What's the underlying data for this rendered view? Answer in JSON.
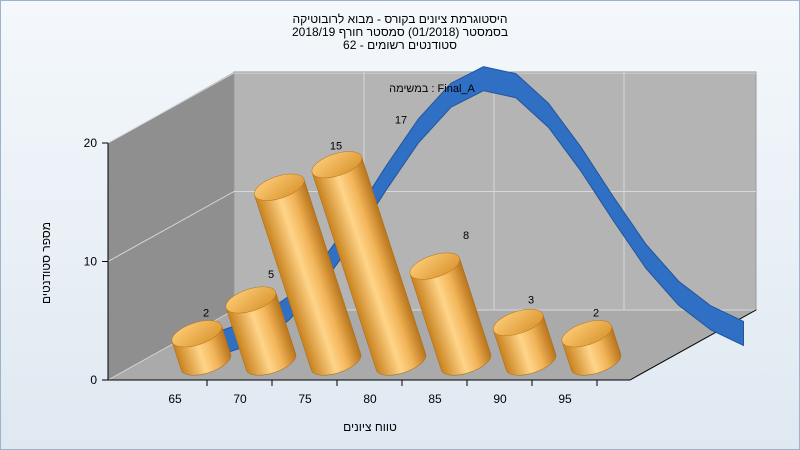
{
  "title_lines": [
    "היסטוגרמת ציונים בקורס - מבוא לרובוטיקה",
    "בסמסטר  (01/2018)  סמסטר חורף 2018/19",
    "סטודנטים רשומים - 62"
  ],
  "chart_data": {
    "type": "bar",
    "categories": [
      "65",
      "70",
      "75",
      "80",
      "85",
      "90",
      "95"
    ],
    "values": [
      2,
      5,
      15,
      17,
      8,
      3,
      2
    ],
    "series_name": "Final_A : במשימה",
    "xlabel": "טווח ציונים",
    "ylabel": "מספר סטודנטים",
    "yticks": [
      0,
      10,
      20
    ],
    "ylim": [
      0,
      20
    ],
    "grid": true,
    "style": "3d-cylinder",
    "bar_color": "#f2b458",
    "curve_color": "#2f6fc4",
    "curve": {
      "type": "normal-distribution-ribbon",
      "x": [
        62,
        64.5,
        67,
        69.5,
        72,
        74.5,
        77,
        79.5,
        82,
        84.5,
        87,
        89.5,
        92,
        94.5,
        97,
        99.5,
        102,
        104.5
      ],
      "y": [
        0.2,
        0.7,
        1.6,
        3.5,
        6.4,
        10.2,
        14.5,
        18.5,
        21.5,
        22.9,
        22.3,
        19.8,
        16.1,
        11.9,
        7.9,
        4.8,
        2.7,
        1.4
      ]
    }
  }
}
